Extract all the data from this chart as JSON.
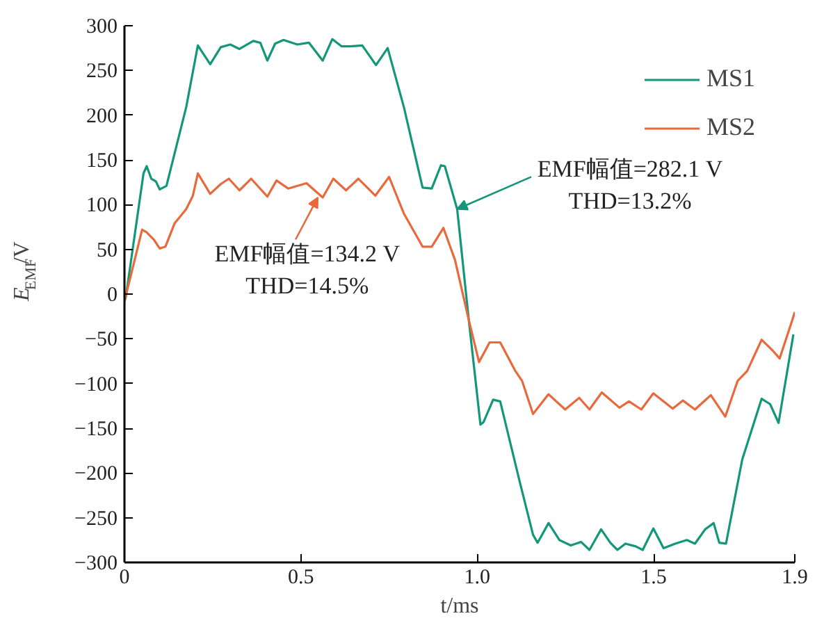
{
  "chart_data": {
    "type": "line",
    "xlabel": "t/ms",
    "ylabel": "E$_{EMF}$/V",
    "xlim": [
      0,
      1.9
    ],
    "ylim": [
      -300,
      300
    ],
    "xticks": [
      0,
      0.5,
      {
        "value": 1,
        "label": "1.0"
      },
      1.5,
      1.9
    ],
    "yticks": [
      -300,
      -250,
      -200,
      -150,
      -100,
      -50,
      0,
      50,
      100,
      150,
      200,
      250,
      300
    ],
    "grid": false,
    "legend": "top right",
    "marker": "none",
    "line_style": "solid",
    "series": [
      {
        "name": "MS1",
        "color": "#12977a",
        "x": [
          0,
          0.004,
          0.054,
          0.063,
          0.076,
          0.089,
          0.1,
          0.119,
          0.175,
          0.208,
          0.243,
          0.273,
          0.3,
          0.326,
          0.365,
          0.385,
          0.405,
          0.427,
          0.451,
          0.49,
          0.523,
          0.562,
          0.589,
          0.615,
          0.641,
          0.674,
          0.713,
          0.746,
          0.792,
          0.845,
          0.871,
          0.897,
          0.908,
          0.943,
          0.976,
          1.009,
          1.018,
          1.045,
          1.065,
          1.121,
          1.158,
          1.171,
          1.202,
          1.233,
          1.265,
          1.294,
          1.318,
          1.351,
          1.377,
          1.397,
          1.42,
          1.449,
          1.469,
          1.499,
          1.528,
          1.561,
          1.594,
          1.617,
          1.646,
          1.67,
          1.686,
          1.705,
          1.751,
          1.806,
          1.83,
          1.854,
          1.896
        ],
        "values": [
          -8,
          -3,
          135,
          143,
          129,
          126,
          117,
          121,
          209,
          278,
          257,
          276,
          279,
          274,
          283,
          281,
          261,
          280,
          284,
          279,
          281,
          261,
          285,
          277,
          277,
          278,
          256,
          275,
          209,
          119,
          118,
          144,
          143,
          95,
          -29,
          -146,
          -143,
          -118,
          -120,
          -211,
          -269,
          -278,
          -256,
          -275,
          -281,
          -277,
          -286,
          -263,
          -278,
          -286,
          -279,
          -282,
          -286,
          -262,
          -284,
          -279,
          -275,
          -279,
          -263,
          -256,
          -278,
          -279,
          -185,
          -117,
          -123,
          -144,
          -45
        ]
      },
      {
        "name": "MS2",
        "color": "#e8693c",
        "x": [
          0,
          0.05,
          0.063,
          0.083,
          0.1,
          0.116,
          0.142,
          0.175,
          0.194,
          0.208,
          0.243,
          0.273,
          0.296,
          0.326,
          0.359,
          0.405,
          0.431,
          0.464,
          0.516,
          0.562,
          0.592,
          0.628,
          0.663,
          0.711,
          0.75,
          0.792,
          0.845,
          0.871,
          0.904,
          0.937,
          0.976,
          1.005,
          1.035,
          1.065,
          1.108,
          1.127,
          1.158,
          1.202,
          1.249,
          1.289,
          1.318,
          1.353,
          1.403,
          1.43,
          1.465,
          1.499,
          1.554,
          1.583,
          1.617,
          1.662,
          1.703,
          1.738,
          1.765,
          1.806,
          1.837,
          1.857,
          1.893,
          1.9
        ],
        "values": [
          -8,
          72,
          69,
          61,
          51,
          53,
          79,
          95,
          110,
          135,
          112,
          123,
          129,
          116,
          129,
          109,
          127,
          118,
          124,
          108,
          129,
          116,
          129,
          110,
          131,
          90,
          53,
          53,
          74,
          38,
          -29,
          -76,
          -54,
          -54,
          -86,
          -97,
          -134,
          -112,
          -129,
          -116,
          -129,
          -110,
          -127,
          -120,
          -129,
          -111,
          -128,
          -119,
          -129,
          -113,
          -137,
          -97,
          -86,
          -51,
          -63,
          -72,
          -29,
          -20
        ]
      }
    ],
    "annotations": [
      {
        "text": "EMF幅值=134.2 V\nTHD=14.5%",
        "x": 0.548,
        "y": 108
      },
      {
        "text": "EMF幅值=282.1 V\nTHD=13.2%",
        "x": 0.943,
        "y": 95
      }
    ]
  }
}
